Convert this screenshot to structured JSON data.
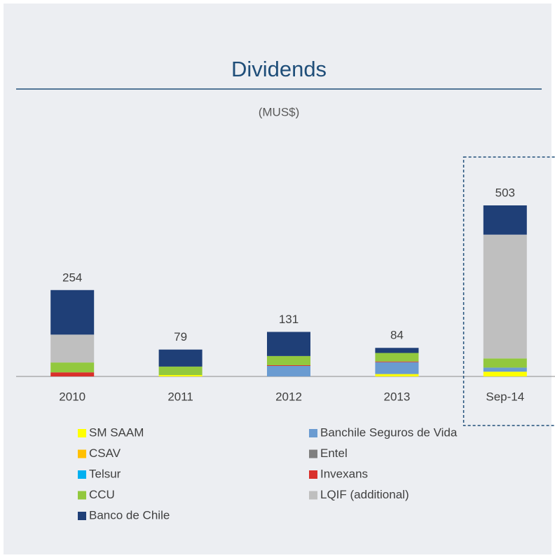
{
  "chart_data": {
    "type": "bar",
    "stacked": true,
    "title": "Dividends",
    "subtitle": "(MUS$)",
    "categories": [
      "2010",
      "2011",
      "2012",
      "2013",
      "Sep-14"
    ],
    "totals": [
      254,
      79,
      131,
      84,
      503
    ],
    "series": [
      {
        "name": "SM SAAM",
        "color": "#ffff00",
        "values": [
          0,
          4,
          0,
          7,
          14
        ]
      },
      {
        "name": "Banchile Seguros de Vida",
        "color": "#6a9bd1",
        "values": [
          0,
          0,
          31,
          35,
          12
        ]
      },
      {
        "name": "CSAV",
        "color": "#ffc000",
        "values": [
          0,
          0,
          0,
          0,
          0
        ]
      },
      {
        "name": "Entel",
        "color": "#7f7f7f",
        "values": [
          0,
          0,
          0,
          0,
          0
        ]
      },
      {
        "name": "Telsur",
        "color": "#00b0f0",
        "values": [
          0,
          0,
          0,
          0,
          0
        ]
      },
      {
        "name": "Invexans",
        "color": "#d9302c",
        "values": [
          12,
          0,
          2,
          2,
          0
        ]
      },
      {
        "name": "CCU",
        "color": "#92c83e",
        "values": [
          29,
          25,
          27,
          25,
          27
        ]
      },
      {
        "name": "LQIF (additional)",
        "color": "#bfbfbf",
        "values": [
          82,
          0,
          0,
          0,
          364
        ]
      },
      {
        "name": "Banco de Chile",
        "color": "#1f3f77",
        "values": [
          131,
          50,
          71,
          15,
          86
        ]
      }
    ]
  }
}
